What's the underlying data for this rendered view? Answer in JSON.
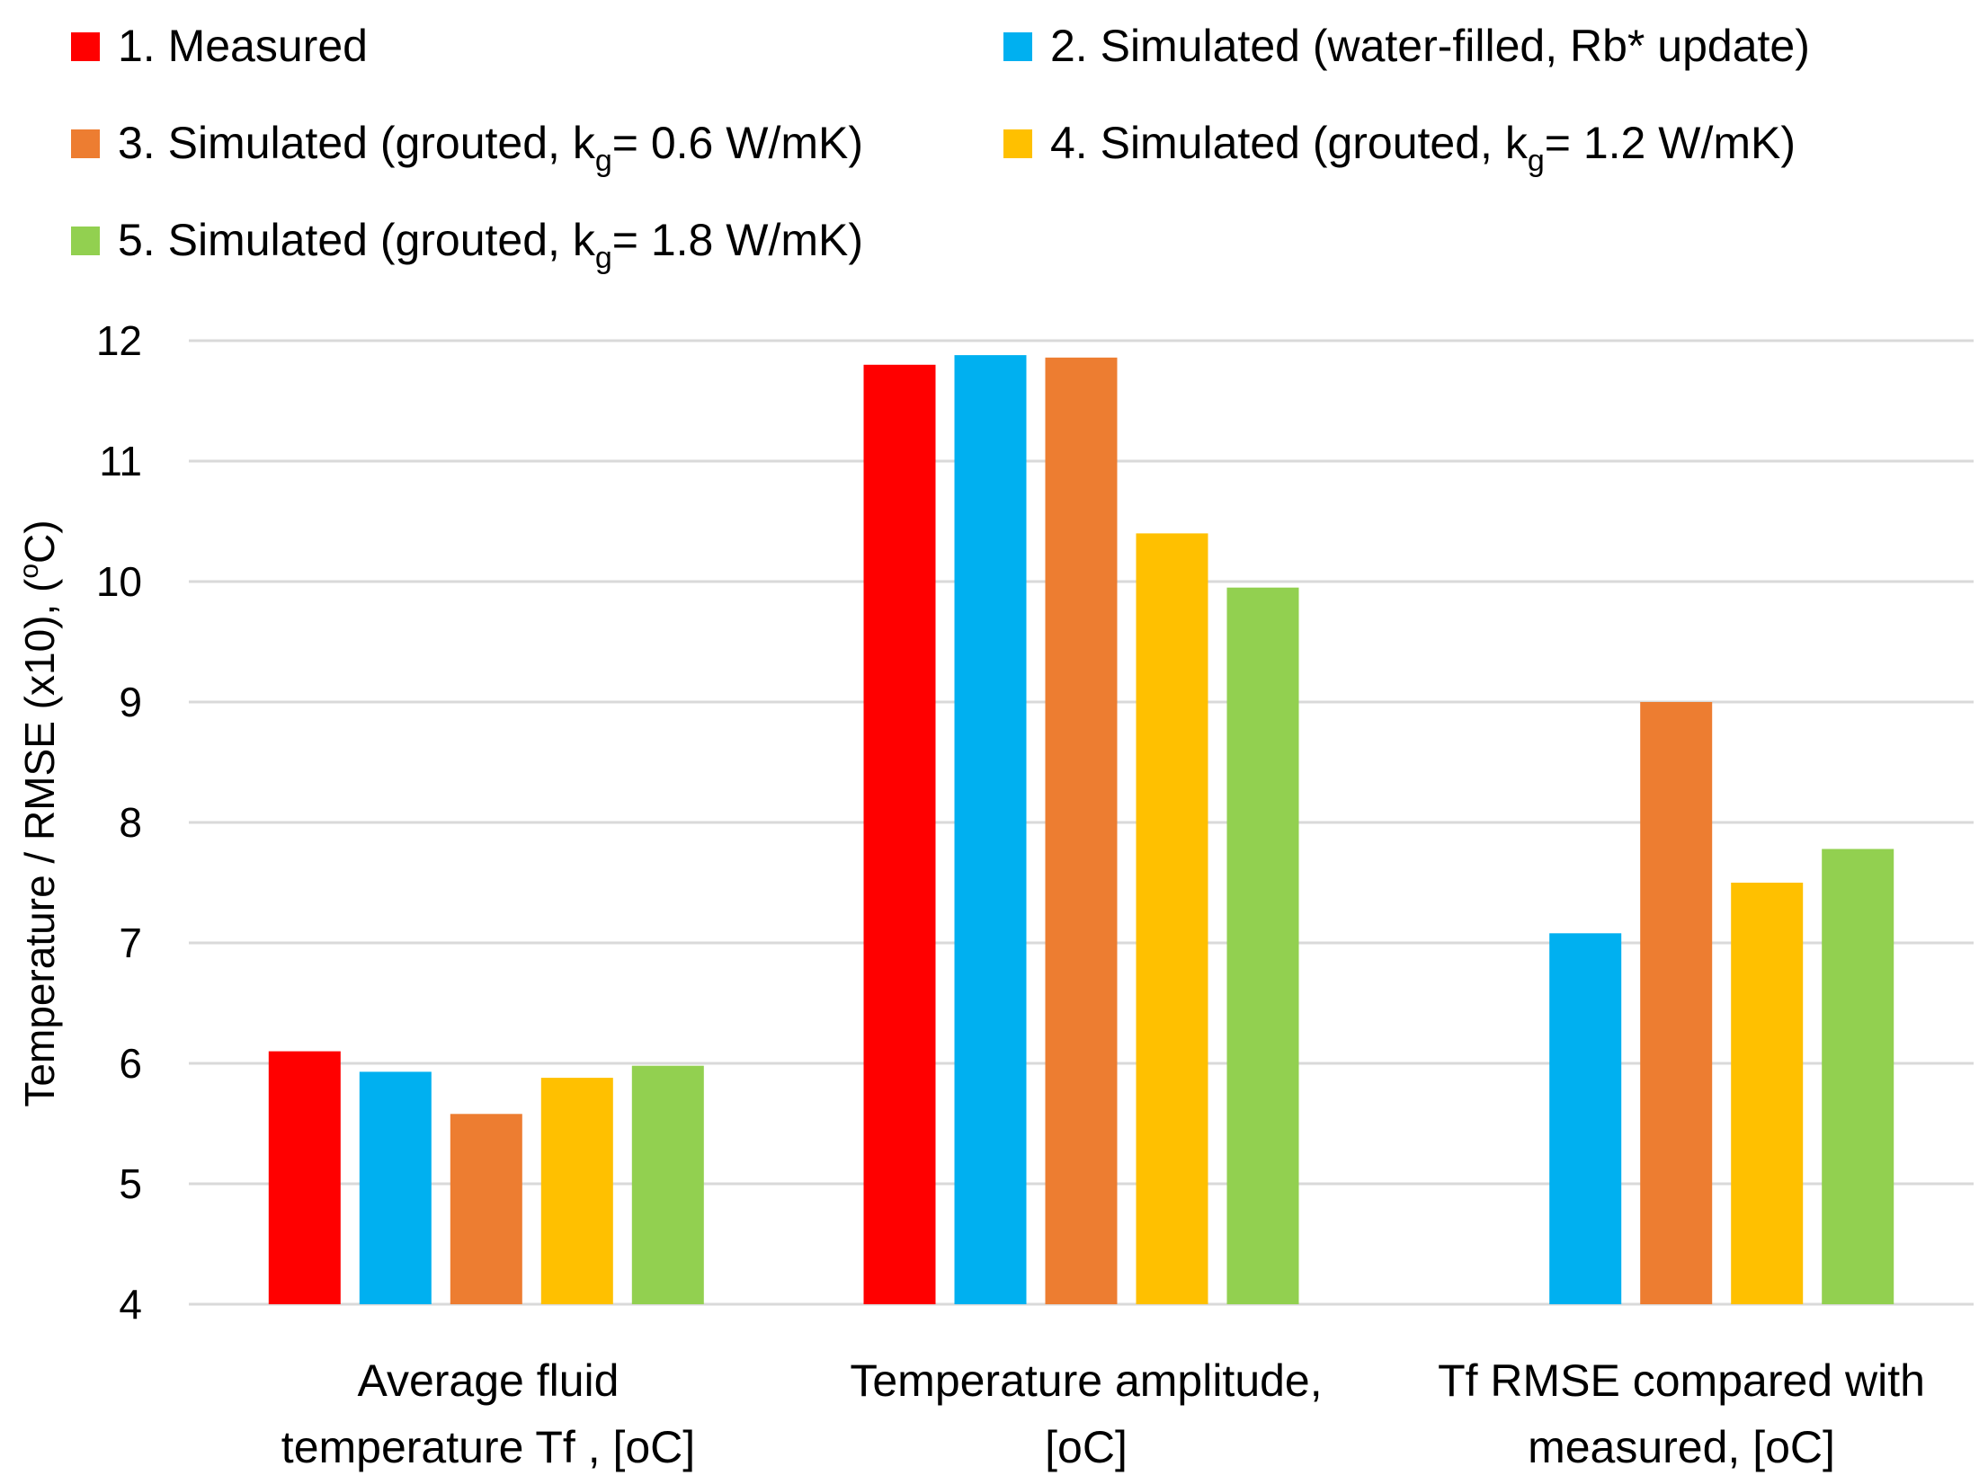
{
  "chart_data": {
    "type": "bar",
    "ylabel_parts": {
      "pre": "Temperature  / RMSE (x10), (",
      "sup": "o",
      "post": "C)"
    },
    "ylim": [
      4,
      12
    ],
    "yticks": [
      "4",
      "5",
      "6",
      "7",
      "8",
      "9",
      "10",
      "11",
      "12"
    ],
    "grid": true,
    "legend_position": "top",
    "categories": [
      {
        "line1": "Average fluid",
        "line2": "temperature Tf , [oC]"
      },
      {
        "line1": "Temperature amplitude,",
        "line2": "[oC]"
      },
      {
        "line1": "Tf RMSE compared with",
        "line2": "measured, [oC]"
      }
    ],
    "series": [
      {
        "name": "1. Measured",
        "color": "#FF0000",
        "values": [
          6.1,
          11.8,
          null
        ]
      },
      {
        "name": "2. Simulated (water-filled, Rb* update)",
        "color": "#00B0F0",
        "values": [
          5.93,
          11.88,
          7.08
        ]
      },
      {
        "name_parts": {
          "pre": "3. Simulated (grouted, k",
          "sub": "g",
          "post": "= 0.6 W/mK)"
        },
        "color": "#ED7D31",
        "values": [
          5.58,
          11.86,
          9.0
        ]
      },
      {
        "name_parts": {
          "pre": "4. Simulated (grouted, k",
          "sub": "g",
          "post": "= 1.2 W/mK)"
        },
        "color": "#FFC000",
        "values": [
          5.88,
          10.4,
          7.5
        ]
      },
      {
        "name_parts": {
          "pre": "5. Simulated (grouted, k",
          "sub": "g",
          "post": "= 1.8 W/mK)"
        },
        "color": "#92D050",
        "values": [
          5.98,
          9.95,
          7.78
        ]
      }
    ]
  }
}
